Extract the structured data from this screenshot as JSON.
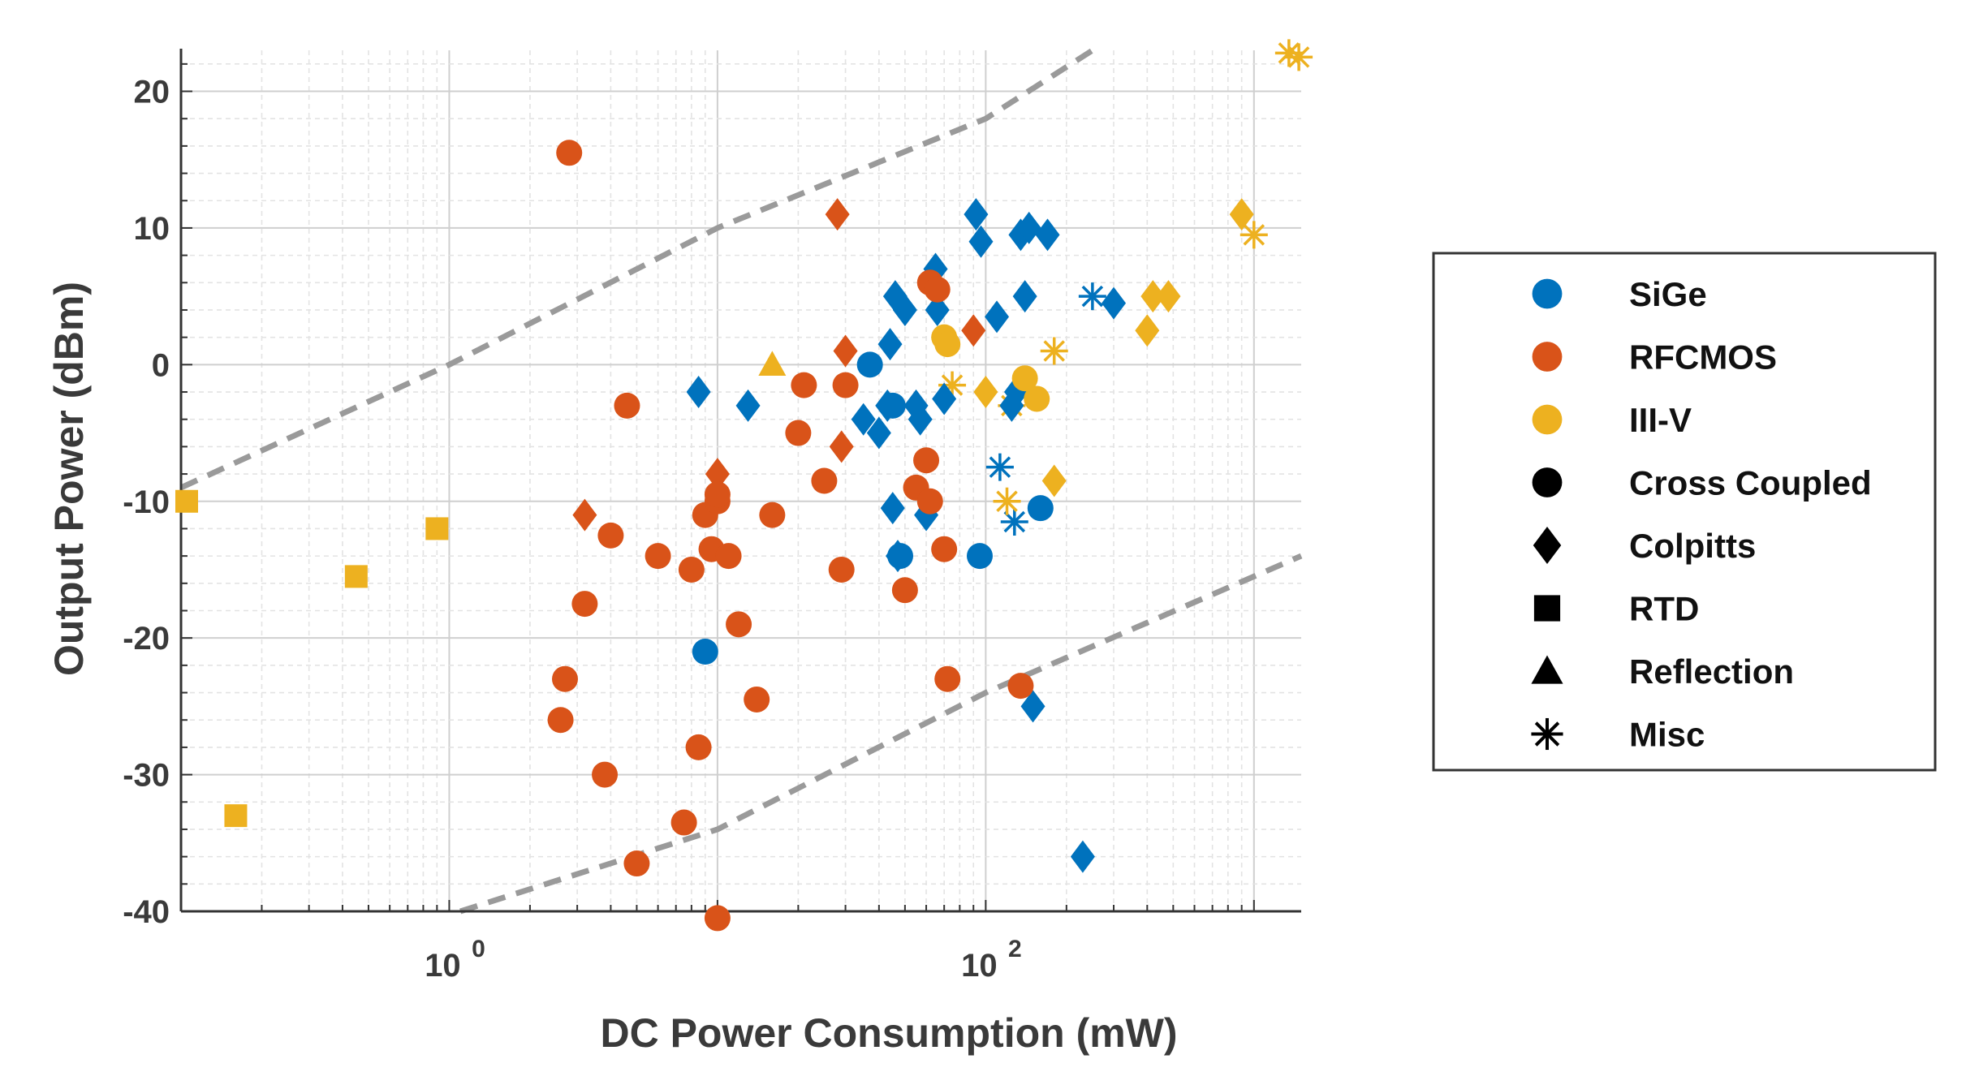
{
  "chart_data": {
    "type": "scatter",
    "xlabel": "DC Power Consumption (mW)",
    "ylabel": "Output Power (dBm)",
    "xscale": "log",
    "xlim": [
      0.1,
      1500
    ],
    "ylim": [
      -40,
      23
    ],
    "x_ticks": [
      {
        "value": 1,
        "base": "10",
        "exp": "0"
      },
      {
        "value": 100,
        "base": "10",
        "exp": "2"
      }
    ],
    "y_ticks": [
      {
        "value": 20,
        "label": "20"
      },
      {
        "value": 10,
        "label": "10"
      },
      {
        "value": 0,
        "label": "0"
      },
      {
        "value": -10,
        "label": "-10"
      },
      {
        "value": -20,
        "label": "-20"
      },
      {
        "value": -30,
        "label": "-30"
      },
      {
        "value": -40,
        "label": "-40"
      }
    ],
    "grid": true,
    "efficiency_lines": [
      {
        "name": "upper",
        "points": [
          [
            0.1,
            -9
          ],
          [
            1.0,
            0
          ],
          [
            10,
            10
          ],
          [
            100,
            18
          ],
          [
            250,
            23
          ]
        ]
      },
      {
        "name": "lower",
        "points": [
          [
            1.1,
            -40
          ],
          [
            10,
            -34
          ],
          [
            100,
            -24
          ],
          [
            1500,
            -14
          ]
        ]
      }
    ],
    "colors": {
      "SiGe": "#0072BD",
      "RFCMOS": "#D95319",
      "III-V": "#EDB120",
      "line": "#9a9a9a",
      "grid": "#d9d9d9"
    },
    "series": [
      {
        "name": "SiGe",
        "marker": "circle",
        "x": [
          9,
          37,
          45,
          48,
          95,
          160
        ],
        "y": [
          -21,
          0,
          -3,
          -14,
          -14,
          -10.5
        ]
      },
      {
        "name": "SiGe",
        "marker": "diamond",
        "x": [
          8.5,
          13,
          35,
          40,
          43,
          44,
          45,
          46,
          47,
          50,
          55,
          57,
          60,
          65,
          66,
          70,
          92,
          96,
          110,
          125,
          130,
          135,
          140,
          145,
          150,
          170,
          230,
          300
        ],
        "y": [
          -2,
          -3,
          -4,
          -5,
          -3,
          1.5,
          -10.5,
          5,
          -14,
          4,
          -3,
          -4,
          -11,
          7,
          4,
          -2.5,
          11,
          9,
          3.5,
          -3,
          -2,
          9.5,
          5,
          10,
          -25,
          9.5,
          -36,
          4.5
        ]
      },
      {
        "name": "SiGe",
        "marker": "star",
        "x": [
          113,
          128,
          250
        ],
        "y": [
          -7.5,
          -11.5,
          5
        ]
      },
      {
        "name": "RFCMOS",
        "marker": "circle",
        "x": [
          2.8,
          2.7,
          2.6,
          3.2,
          3.8,
          4,
          4.6,
          5,
          6,
          7.5,
          8,
          8.5,
          9,
          9.5,
          10,
          10,
          10,
          11,
          12,
          14,
          16,
          20,
          21,
          25,
          29,
          30,
          50,
          55,
          60,
          62,
          62,
          66,
          70,
          72,
          135
        ],
        "y": [
          15.5,
          -23,
          -26,
          -17.5,
          -30,
          -12.5,
          -3,
          -36.5,
          -14,
          -33.5,
          -15,
          -28,
          -11,
          -13.5,
          -10,
          -40.5,
          -9.5,
          -14,
          -19,
          -24.5,
          -11,
          -5,
          -1.5,
          -8.5,
          -15,
          -1.5,
          -16.5,
          -9,
          -7,
          6,
          -10,
          5.5,
          -13.5,
          -23,
          -23.5
        ]
      },
      {
        "name": "RFCMOS",
        "marker": "diamond",
        "x": [
          3.2,
          10,
          28,
          29,
          30,
          90
        ],
        "y": [
          -11,
          -8,
          11,
          -6,
          1,
          2.5
        ]
      },
      {
        "name": "III-V",
        "marker": "circle",
        "x": [
          70,
          72,
          140,
          155
        ],
        "y": [
          2,
          1.5,
          -1,
          -2.5
        ]
      },
      {
        "name": "III-V",
        "marker": "diamond",
        "x": [
          100,
          180,
          400,
          420,
          480,
          900
        ],
        "y": [
          -2,
          -8.5,
          2.5,
          5,
          5,
          11
        ]
      },
      {
        "name": "III-V",
        "marker": "square",
        "x": [
          0.105,
          0.16,
          0.45,
          0.9
        ],
        "y": [
          -10,
          -33,
          -15.5,
          -12
        ]
      },
      {
        "name": "III-V",
        "marker": "triangle",
        "x": [
          16
        ],
        "y": [
          0
        ]
      },
      {
        "name": "III-V",
        "marker": "star",
        "x": [
          75,
          120,
          125,
          180,
          1000,
          1350,
          1470
        ],
        "y": [
          -1.5,
          -10,
          -3,
          1,
          9.5,
          22.8,
          22.5
        ]
      }
    ],
    "legend": {
      "position": "right",
      "entries": [
        {
          "label": "SiGe",
          "marker": "circle",
          "color": "#0072BD"
        },
        {
          "label": "RFCMOS",
          "marker": "circle",
          "color": "#D95319"
        },
        {
          "label": "III-V",
          "marker": "circle",
          "color": "#EDB120"
        },
        {
          "label": "Cross Coupled",
          "marker": "circle",
          "color": "#000000"
        },
        {
          "label": "Colpitts",
          "marker": "diamond",
          "color": "#000000"
        },
        {
          "label": "RTD",
          "marker": "square",
          "color": "#000000"
        },
        {
          "label": "Reflection",
          "marker": "triangle",
          "color": "#000000"
        },
        {
          "label": "Misc",
          "marker": "star",
          "color": "#000000"
        }
      ]
    }
  }
}
